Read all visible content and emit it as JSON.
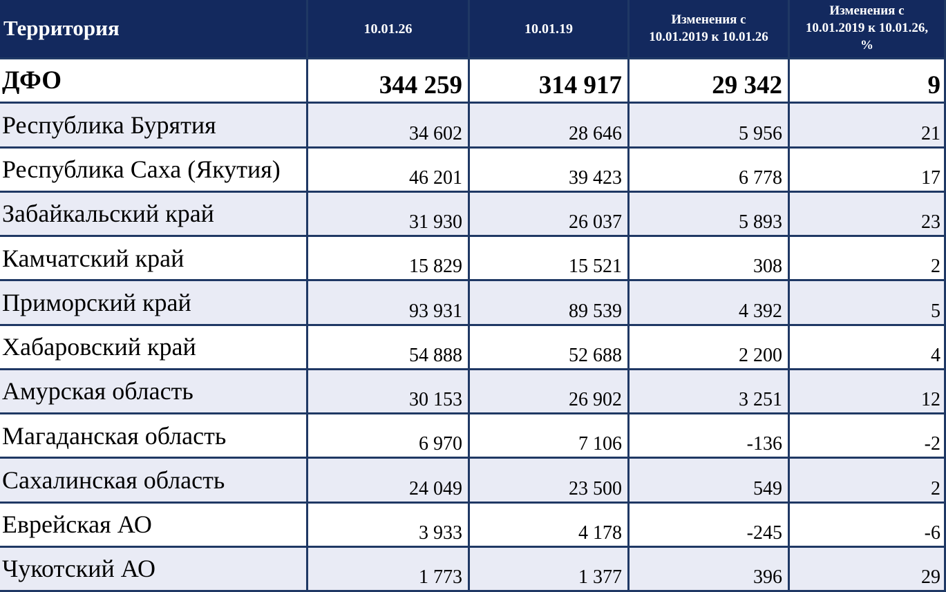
{
  "table": {
    "columns": [
      {
        "label": "Территория"
      },
      {
        "label": "10.01.26"
      },
      {
        "label": "10.01.19"
      },
      {
        "label": "Изменения с\n10.01.2019 к 10.01.26"
      },
      {
        "label": "Изменения с\n10.01.2019 к 10.01.26,\n%"
      }
    ],
    "rows": [
      {
        "territory": "ДФО",
        "v_10_01_26": "344 259",
        "v_10_01_19": "314 917",
        "change_abs": "29 342",
        "change_pct": "9"
      },
      {
        "territory": "Республика Бурятия",
        "v_10_01_26": "34 602",
        "v_10_01_19": "28 646",
        "change_abs": "5 956",
        "change_pct": "21"
      },
      {
        "territory": "Республика Саха (Якутия)",
        "v_10_01_26": "46 201",
        "v_10_01_19": "39 423",
        "change_abs": "6 778",
        "change_pct": "17"
      },
      {
        "territory": "Забайкальский край",
        "v_10_01_26": "31 930",
        "v_10_01_19": "26 037",
        "change_abs": "5 893",
        "change_pct": "23"
      },
      {
        "territory": "Камчатский край",
        "v_10_01_26": "15 829",
        "v_10_01_19": "15 521",
        "change_abs": "308",
        "change_pct": "2"
      },
      {
        "territory": "Приморский край",
        "v_10_01_26": "93 931",
        "v_10_01_19": "89 539",
        "change_abs": "4 392",
        "change_pct": "5"
      },
      {
        "territory": "Хабаровский край",
        "v_10_01_26": "54 888",
        "v_10_01_19": "52 688",
        "change_abs": "2 200",
        "change_pct": "4"
      },
      {
        "territory": "Амурская область",
        "v_10_01_26": "30 153",
        "v_10_01_19": "26 902",
        "change_abs": "3 251",
        "change_pct": "12"
      },
      {
        "territory": "Магаданская область",
        "v_10_01_26": "6 970",
        "v_10_01_19": "7 106",
        "change_abs": "-136",
        "change_pct": "-2"
      },
      {
        "territory": "Сахалинская область",
        "v_10_01_26": "24 049",
        "v_10_01_19": "23 500",
        "change_abs": "549",
        "change_pct": "2"
      },
      {
        "territory": "Еврейская АО",
        "v_10_01_26": "3 933",
        "v_10_01_19": "4 178",
        "change_abs": "-245",
        "change_pct": "-6"
      },
      {
        "territory": "Чукотский АО",
        "v_10_01_26": "1 773",
        "v_10_01_19": "1 377",
        "change_abs": "396",
        "change_pct": "29"
      }
    ]
  },
  "colors": {
    "header_bg": "#13295E",
    "header_text": "#FFFFFF",
    "row_bg": "#FFFFFF",
    "row_alt_bg": "#E9EBF5",
    "border": "#1F3864",
    "text": "#000000"
  }
}
